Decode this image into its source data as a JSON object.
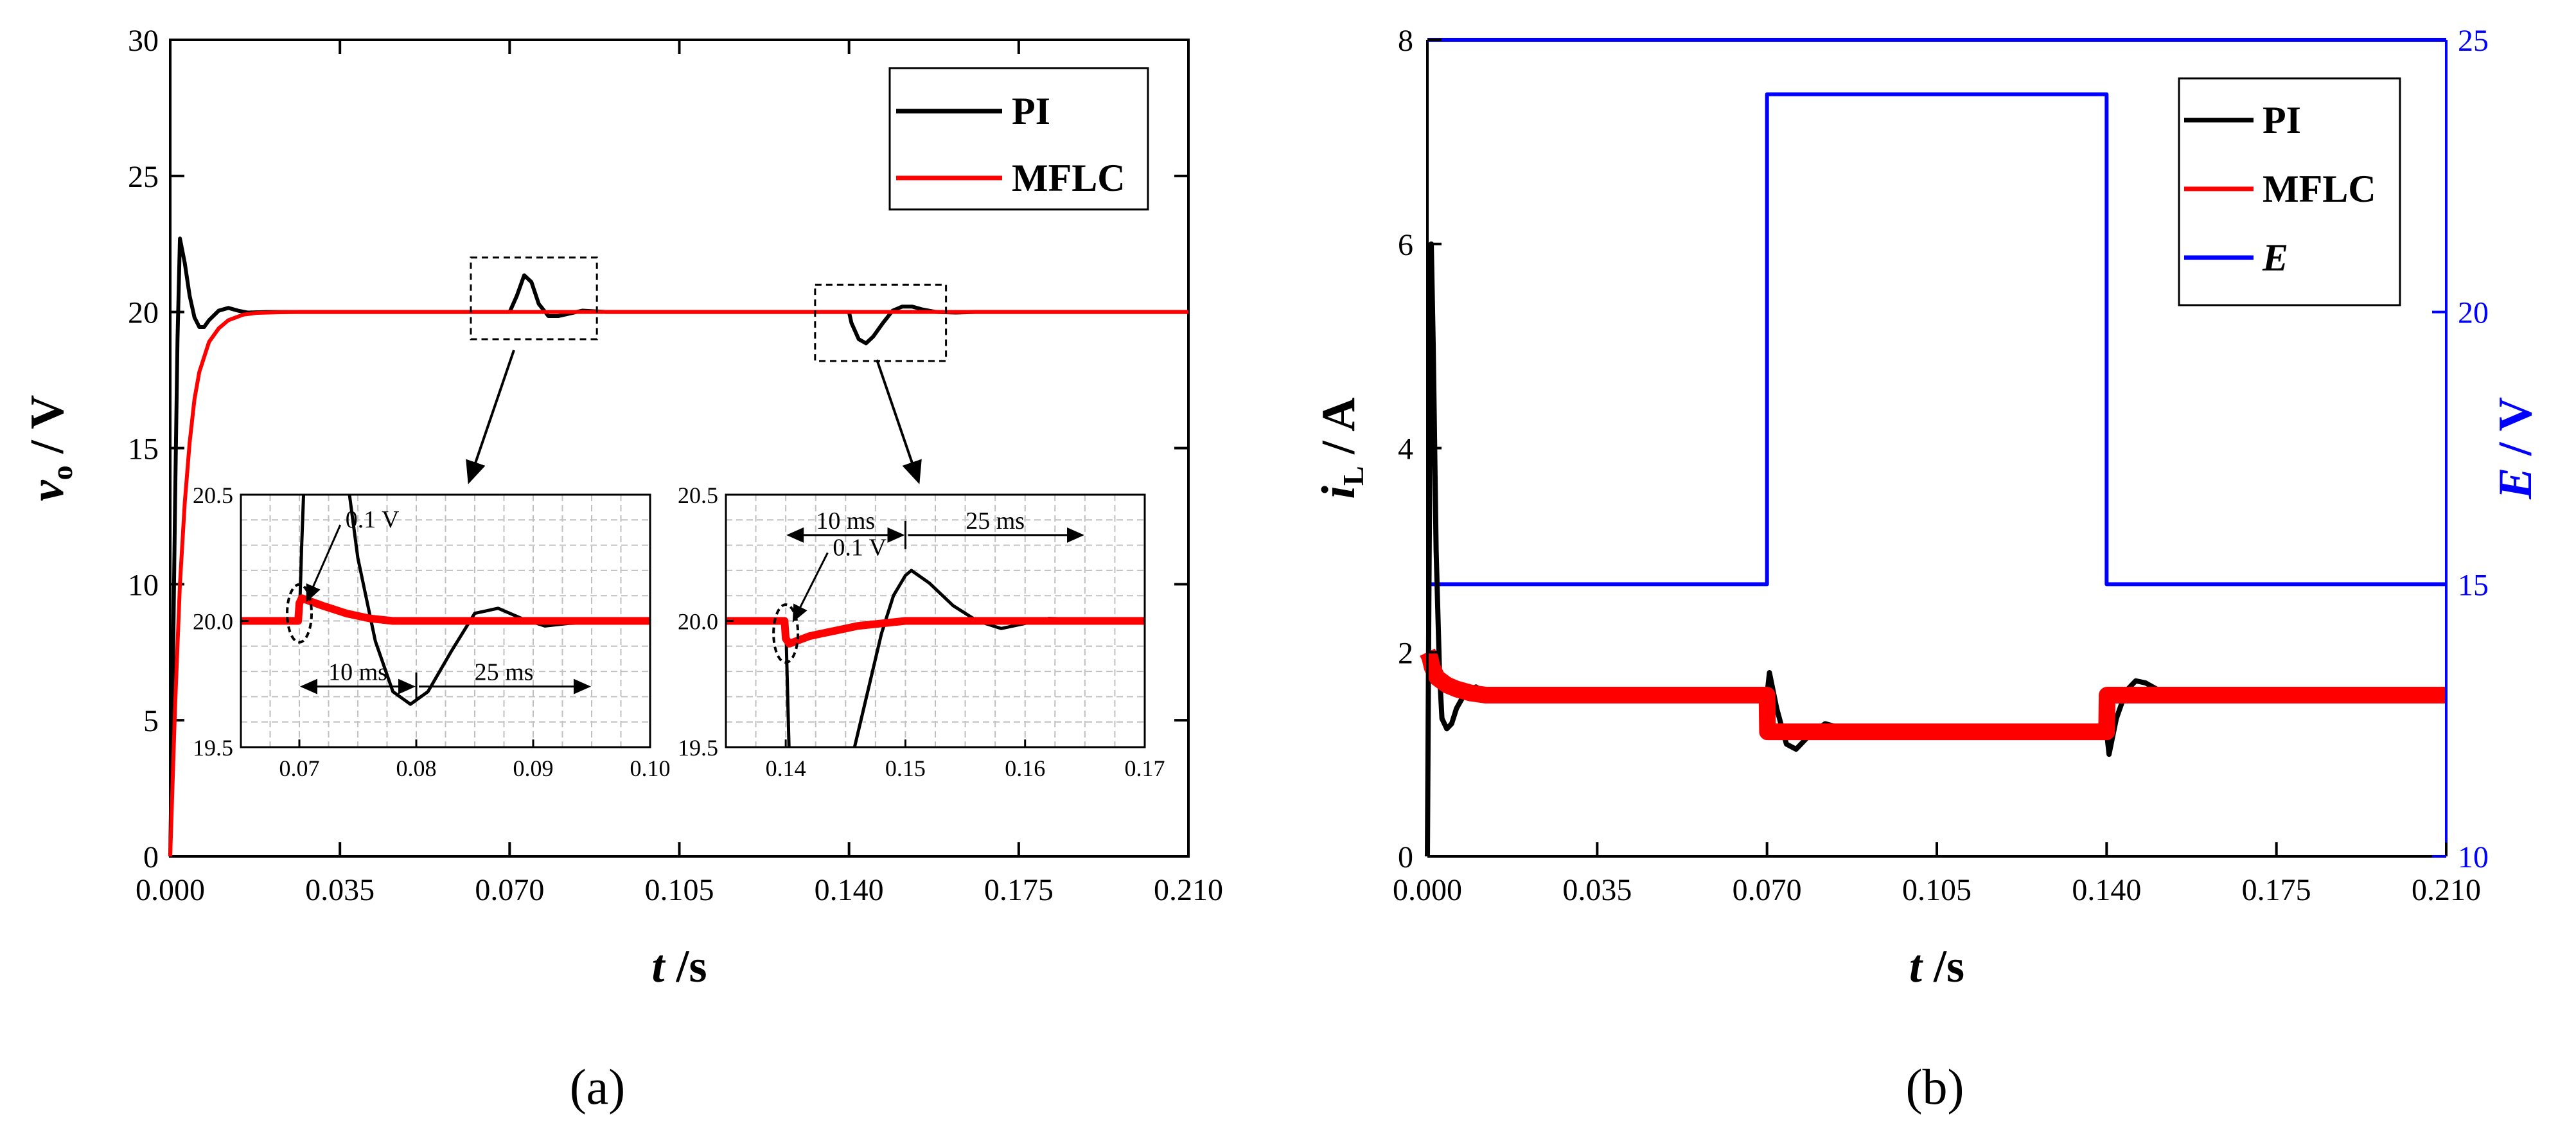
{
  "colors": {
    "pi": "#000000",
    "mflc": "#ff0000",
    "e": "#0000ff",
    "axis": "#000000",
    "grid": "#c0c0c0"
  },
  "panel_a_label": "(a)",
  "panel_b_label": "(b)",
  "chart_data": [
    {
      "id": "panel-a",
      "type": "line",
      "xlabel": "t /s",
      "xlabel_var": "t",
      "xlabel_unit": " /s",
      "ylabel": "vo / V",
      "ylabel_var": "v",
      "ylabel_sub": "o",
      "ylabel_unit": " / V",
      "xlim": [
        0,
        0.21
      ],
      "ylim": [
        0,
        30
      ],
      "xticks": [
        0.0,
        0.035,
        0.07,
        0.105,
        0.14,
        0.175,
        0.21
      ],
      "xtick_labels": [
        "0.000",
        "0.035",
        "0.070",
        "0.105",
        "0.140",
        "0.175",
        "0.210"
      ],
      "yticks": [
        0,
        5,
        10,
        15,
        20,
        25,
        30
      ],
      "ytick_labels": [
        "0",
        "5",
        "10",
        "15",
        "20",
        "25",
        "30"
      ],
      "legend": {
        "position": "top-right",
        "entries": [
          "PI",
          "MFLC"
        ]
      },
      "series": [
        {
          "name": "PI",
          "x": [
            0,
            0.0005,
            0.001,
            0.0015,
            0.002,
            0.003,
            0.004,
            0.005,
            0.006,
            0.007,
            0.008,
            0.01,
            0.012,
            0.014,
            0.016,
            0.02,
            0.025,
            0.07,
            0.0715,
            0.073,
            0.0745,
            0.076,
            0.078,
            0.08,
            0.085,
            0.09,
            0.095,
            0.14,
            0.1405,
            0.142,
            0.1435,
            0.145,
            0.147,
            0.149,
            0.151,
            0.153,
            0.155,
            0.158,
            0.162,
            0.166,
            0.21
          ],
          "values": [
            0,
            6,
            13,
            19,
            22.7,
            21.8,
            20.6,
            19.8,
            19.45,
            19.45,
            19.7,
            20.05,
            20.15,
            20.05,
            19.98,
            20.0,
            20.0,
            20.0,
            20.6,
            21.35,
            21.1,
            20.3,
            19.85,
            19.85,
            20.05,
            20.0,
            20.0,
            20.0,
            19.6,
            19.0,
            18.85,
            19.1,
            19.6,
            20.05,
            20.2,
            20.2,
            20.1,
            20.0,
            19.98,
            20.0,
            20.0
          ]
        },
        {
          "name": "MFLC",
          "x": [
            0,
            0.001,
            0.002,
            0.003,
            0.004,
            0.005,
            0.006,
            0.008,
            0.01,
            0.012,
            0.015,
            0.018,
            0.022,
            0.026,
            0.03,
            0.21
          ],
          "values": [
            0,
            5.5,
            10,
            13,
            15.2,
            16.8,
            17.8,
            18.9,
            19.4,
            19.7,
            19.9,
            19.97,
            19.99,
            20.0,
            20.0,
            20.0
          ]
        }
      ],
      "annotations": [
        {
          "type": "box",
          "x": [
            0.062,
            0.088
          ],
          "y": [
            19.0,
            22.0
          ]
        },
        {
          "type": "box",
          "x": [
            0.133,
            0.16
          ],
          "y": [
            18.2,
            21.0
          ]
        }
      ],
      "insets": [
        {
          "id": "inset-1",
          "xlim": [
            0.065,
            0.1
          ],
          "ylim": [
            19.5,
            20.5
          ],
          "xticks": [
            0.07,
            0.08,
            0.09,
            0.1
          ],
          "xtick_labels": [
            "0.07",
            "0.08",
            "0.09",
            "0.10"
          ],
          "yticks": [
            19.5,
            20.0,
            20.5
          ],
          "ytick_labels": [
            "19.5",
            "20.0",
            "20.5"
          ],
          "labels": [
            "0.1 V",
            "10 ms",
            "25 ms"
          ],
          "series": [
            {
              "name": "PI",
              "x": [
                0.065,
                0.0695,
                0.07,
                0.0702,
                0.0706,
                0.0725,
                0.074,
                0.075,
                0.0765,
                0.078,
                0.0795,
                0.081,
                0.083,
                0.085,
                0.087,
                0.089,
                0.091,
                0.093,
                0.1
              ],
              "values": [
                20.0,
                20.0,
                20.0,
                20.3,
                20.8,
                20.8,
                20.6,
                20.25,
                19.92,
                19.72,
                19.67,
                19.72,
                19.88,
                20.03,
                20.05,
                20.01,
                19.98,
                19.99,
                20.0
              ]
            },
            {
              "name": "MFLC",
              "x": [
                0.065,
                0.0699,
                0.07,
                0.0702,
                0.072,
                0.074,
                0.076,
                0.078,
                0.08,
                0.085,
                0.1
              ],
              "values": [
                20.0,
                20.0,
                20.07,
                20.09,
                20.06,
                20.03,
                20.01,
                20.0,
                20.0,
                20.0,
                20.0
              ]
            }
          ]
        },
        {
          "id": "inset-2",
          "xlim": [
            0.135,
            0.17
          ],
          "ylim": [
            19.5,
            20.5
          ],
          "xticks": [
            0.14,
            0.15,
            0.16,
            0.17
          ],
          "xtick_labels": [
            "0.14",
            "0.15",
            "0.16",
            "0.17"
          ],
          "yticks": [
            19.5,
            20.0,
            20.5
          ],
          "ytick_labels": [
            "19.5",
            "20.0",
            "20.5"
          ],
          "labels": [
            "0.1 V",
            "10 ms",
            "25 ms"
          ],
          "series": [
            {
              "name": "PI",
              "x": [
                0.135,
                0.1397,
                0.14,
                0.1403,
                0.1435,
                0.1455,
                0.147,
                0.148,
                0.149,
                0.15,
                0.1505,
                0.152,
                0.154,
                0.156,
                0.158,
                0.16,
                0.162,
                0.17
              ],
              "values": [
                20.0,
                20.0,
                20.0,
                19.45,
                19.2,
                19.45,
                19.75,
                19.95,
                20.1,
                20.18,
                20.2,
                20.15,
                20.06,
                20.0,
                19.97,
                19.99,
                20.01,
                20.0
              ]
            },
            {
              "name": "MFLC",
              "x": [
                0.135,
                0.1399,
                0.14,
                0.1403,
                0.142,
                0.144,
                0.146,
                0.148,
                0.15,
                0.155,
                0.17
              ],
              "values": [
                20.0,
                20.0,
                19.93,
                19.91,
                19.94,
                19.96,
                19.98,
                19.99,
                20.0,
                20.0,
                20.0
              ]
            }
          ]
        }
      ]
    },
    {
      "id": "panel-b",
      "type": "line",
      "xlabel": "t /s",
      "xlabel_var": "t",
      "xlabel_unit": " /s",
      "ylabel": "iL / A",
      "ylabel_var": "i",
      "ylabel_sub": "L",
      "ylabel_unit": " / A",
      "y2label": "E / V",
      "y2label_var": "E",
      "y2label_unit": " / V",
      "xlim": [
        0,
        0.21
      ],
      "ylim": [
        0,
        8
      ],
      "y2lim": [
        10,
        25
      ],
      "xticks": [
        0.0,
        0.035,
        0.07,
        0.105,
        0.14,
        0.175,
        0.21
      ],
      "xtick_labels": [
        "0.000",
        "0.035",
        "0.070",
        "0.105",
        "0.140",
        "0.175",
        "0.210"
      ],
      "yticks": [
        0,
        2,
        4,
        6,
        8
      ],
      "ytick_labels": [
        "0",
        "2",
        "4",
        "6",
        "8"
      ],
      "y2ticks": [
        10,
        15,
        20,
        25
      ],
      "y2tick_labels": [
        "10",
        "15",
        "20",
        "25"
      ],
      "legend": {
        "position": "top-right",
        "entries": [
          "PI",
          "MFLC",
          "E"
        ]
      },
      "series": [
        {
          "name": "PI",
          "axis": "left",
          "x": [
            0,
            0.0003,
            0.0008,
            0.0012,
            0.0018,
            0.0025,
            0.003,
            0.004,
            0.005,
            0.006,
            0.008,
            0.01,
            0.012,
            0.015,
            0.02,
            0.07,
            0.0705,
            0.072,
            0.074,
            0.076,
            0.079,
            0.082,
            0.088,
            0.14,
            0.1405,
            0.142,
            0.144,
            0.146,
            0.148,
            0.151,
            0.155,
            0.16,
            0.21
          ],
          "values": [
            0,
            2.5,
            6.0,
            5.0,
            3.0,
            1.8,
            1.35,
            1.25,
            1.3,
            1.45,
            1.62,
            1.66,
            1.6,
            1.56,
            1.58,
            1.58,
            1.8,
            1.45,
            1.1,
            1.05,
            1.2,
            1.3,
            1.22,
            1.22,
            1.0,
            1.35,
            1.62,
            1.72,
            1.7,
            1.62,
            1.57,
            1.58,
            1.58
          ]
        },
        {
          "name": "MFLC",
          "axis": "left",
          "x": [
            0,
            0.0005,
            0.001,
            0.002,
            0.004,
            0.006,
            0.009,
            0.012,
            0.07,
            0.0701,
            0.14,
            0.1401,
            0.21
          ],
          "values": [
            2.0,
            1.95,
            1.85,
            1.75,
            1.68,
            1.64,
            1.6,
            1.58,
            1.58,
            1.22,
            1.22,
            1.58,
            1.58
          ]
        },
        {
          "name": "E",
          "axis": "right",
          "x": [
            0,
            0.07,
            0.07,
            0.14,
            0.14,
            0.21
          ],
          "values": [
            15,
            15,
            24,
            24,
            15,
            15
          ]
        }
      ]
    }
  ]
}
